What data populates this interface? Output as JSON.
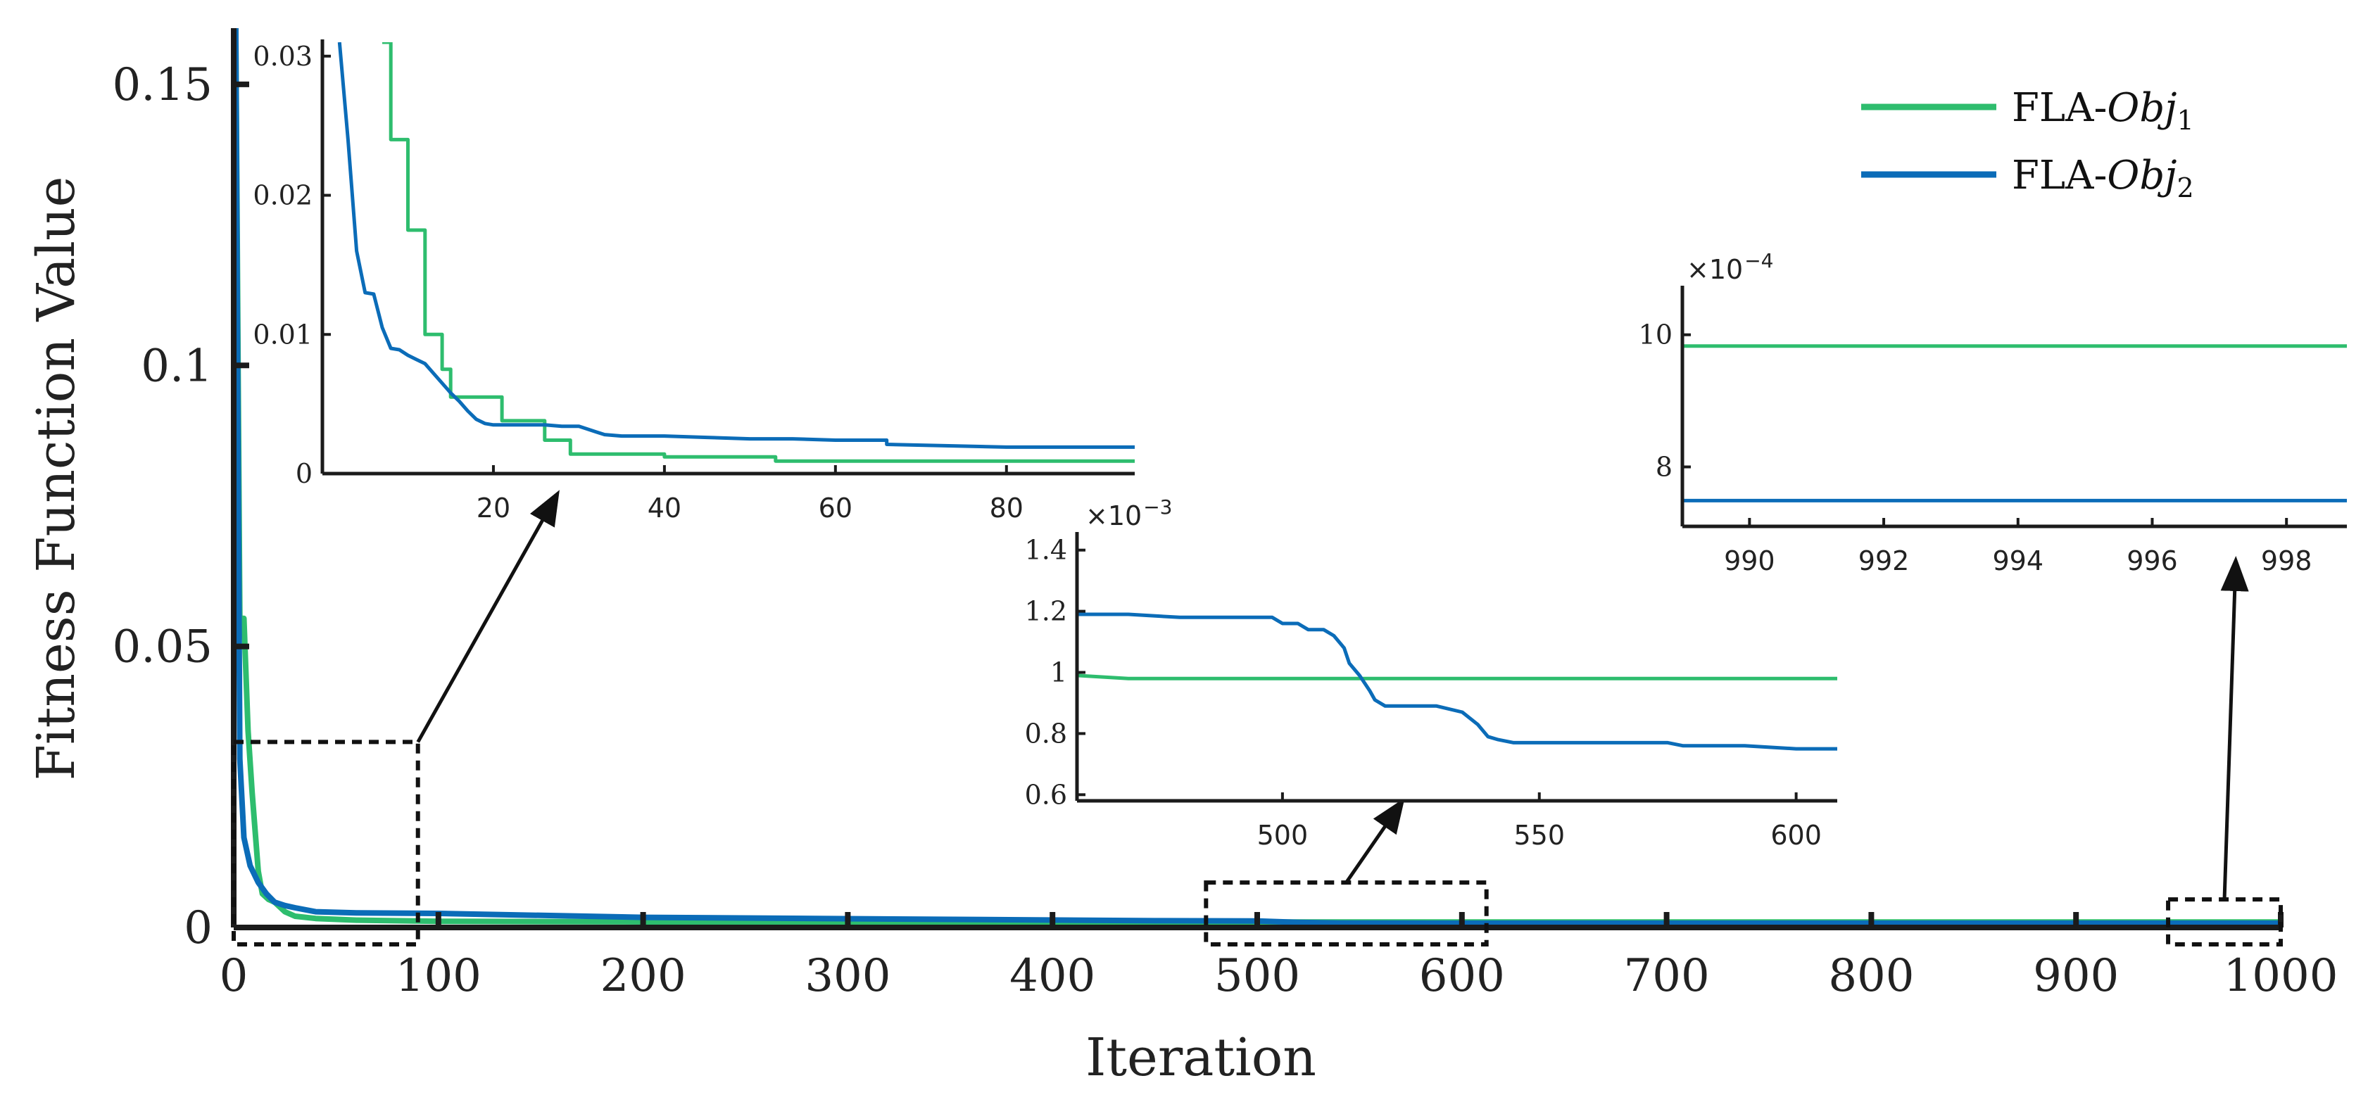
{
  "chart_data": {
    "type": "line",
    "xlabel": "Iteration",
    "ylabel": "Fitness Function Value",
    "xlim": [
      0,
      1000
    ],
    "ylim": [
      0,
      0.16
    ],
    "xticks": [
      0,
      100,
      200,
      300,
      400,
      500,
      600,
      700,
      800,
      900,
      1000
    ],
    "xtick_labels": [
      "0",
      "100",
      "200",
      "300",
      "400",
      "500",
      "600",
      "700",
      "800",
      "900",
      "1000"
    ],
    "yticks": [
      0,
      0.05,
      0.1,
      0.15
    ],
    "ytick_labels": [
      "0",
      "0.05",
      "0.1",
      "0.15"
    ],
    "grid": false,
    "legend_position": "top-right",
    "colors": {
      "obj1": "#2ebd6e",
      "obj2": "#0b6cb8"
    },
    "series": [
      {
        "key": "obj1",
        "name_prefix": "FLA-",
        "name_var": "Obj",
        "name_sub": "1",
        "x": [
          1,
          3,
          5,
          7,
          9,
          12,
          14,
          17,
          20,
          25,
          30,
          40,
          60,
          100,
          200,
          400,
          1000
        ],
        "y": [
          0.16,
          0.055,
          0.055,
          0.035,
          0.024,
          0.01,
          0.006,
          0.005,
          0.0045,
          0.0028,
          0.002,
          0.0016,
          0.0013,
          0.0011,
          0.001,
          0.00098,
          0.00098
        ]
      },
      {
        "key": "obj2",
        "name_prefix": "FLA-",
        "name_var": "Obj",
        "name_sub": "2",
        "x": [
          1,
          3,
          5,
          8,
          12,
          16,
          20,
          25,
          30,
          40,
          60,
          100,
          200,
          450,
          500,
          520,
          540,
          600,
          1000
        ],
        "y": [
          0.16,
          0.03,
          0.016,
          0.011,
          0.008,
          0.006,
          0.0045,
          0.0039,
          0.0035,
          0.0028,
          0.0026,
          0.0025,
          0.0018,
          0.0012,
          0.00115,
          0.0009,
          0.00077,
          0.00075,
          0.00075
        ]
      }
    ],
    "zoom_boxes": [
      {
        "x": [
          0,
          90
        ],
        "y": [
          -0.003,
          0.033
        ]
      },
      {
        "x": [
          475,
          612
        ],
        "y": [
          -0.003,
          0.008
        ]
      },
      {
        "x": [
          945,
          1000
        ],
        "y": [
          -0.003,
          0.005
        ]
      }
    ],
    "insets": [
      {
        "id": "inset1",
        "xlim": [
          0,
          95
        ],
        "ylim": [
          0,
          0.031
        ],
        "xticks": [
          20,
          40,
          60,
          80
        ],
        "xtick_labels": [
          "20",
          "40",
          "60",
          "80"
        ],
        "yticks": [
          0,
          0.01,
          0.02,
          0.03
        ],
        "ytick_labels": [
          "0",
          "0.01",
          "0.02",
          "0.03"
        ],
        "series": [
          {
            "key": "obj1",
            "x": [
              7,
              8,
              8,
              10,
              10,
              12,
              12,
              14,
              14,
              15,
              15,
              19,
              19,
              21,
              21,
              26,
              26,
              29,
              29,
              32,
              32,
              40,
              40,
              53,
              53,
              95
            ],
            "y": [
              0.031,
              0.031,
              0.024,
              0.024,
              0.0175,
              0.0175,
              0.01,
              0.01,
              0.0075,
              0.0075,
              0.0055,
              0.0055,
              0.0055,
              0.0055,
              0.0038,
              0.0038,
              0.0024,
              0.0024,
              0.0014,
              0.0014,
              0.0014,
              0.0014,
              0.0012,
              0.0012,
              0.0009,
              0.0009
            ]
          },
          {
            "key": "obj2",
            "x": [
              2,
              3,
              4,
              5,
              6,
              7,
              8,
              9,
              10,
              11,
              12,
              13,
              14,
              15,
              16,
              17,
              18,
              19,
              20,
              22,
              24,
              26,
              28,
              30,
              31,
              32,
              33,
              35,
              40,
              45,
              50,
              55,
              60,
              66,
              66,
              80,
              95
            ],
            "y": [
              0.031,
              0.024,
              0.016,
              0.013,
              0.0129,
              0.0105,
              0.009,
              0.0089,
              0.0085,
              0.0082,
              0.0079,
              0.0072,
              0.0065,
              0.0058,
              0.0052,
              0.0045,
              0.0039,
              0.0036,
              0.0035,
              0.0035,
              0.0035,
              0.0035,
              0.0034,
              0.0034,
              0.0032,
              0.003,
              0.0028,
              0.0027,
              0.0027,
              0.0026,
              0.0025,
              0.0025,
              0.0024,
              0.0024,
              0.0021,
              0.0019,
              0.0019
            ]
          }
        ]
      },
      {
        "id": "inset2",
        "xlim": [
          460,
          608
        ],
        "ylim": [
          0.00058,
          0.00145
        ],
        "xticks": [
          500,
          550,
          600
        ],
        "xtick_labels": [
          "500",
          "550",
          "600"
        ],
        "yticks": [
          0.0006,
          0.0008,
          0.001,
          0.0012,
          0.0014
        ],
        "ytick_labels": [
          "0.6",
          "0.8",
          "1",
          "1.2",
          "1.4"
        ],
        "exponent_base": "×10",
        "exponent_power": "−3",
        "series": [
          {
            "key": "obj1",
            "x": [
              460,
              470,
              608
            ],
            "y": [
              0.00099,
              0.00098,
              0.00098
            ]
          },
          {
            "key": "obj2",
            "x": [
              460,
              470,
              480,
              490,
              498,
              500,
              503,
              505,
              508,
              510,
              512,
              513,
              515,
              517,
              518,
              520,
              522,
              525,
              530,
              535,
              538,
              540,
              542,
              545,
              550,
              560,
              570,
              575,
              578,
              590,
              600,
              608
            ],
            "y": [
              0.00119,
              0.00119,
              0.00118,
              0.00118,
              0.00118,
              0.00116,
              0.00116,
              0.00114,
              0.00114,
              0.00112,
              0.00108,
              0.00103,
              0.00099,
              0.00094,
              0.00091,
              0.00089,
              0.00089,
              0.00089,
              0.00089,
              0.00087,
              0.00083,
              0.00079,
              0.00078,
              0.00077,
              0.00077,
              0.00077,
              0.00077,
              0.00077,
              0.00076,
              0.00076,
              0.00075,
              0.00075
            ]
          }
        ]
      },
      {
        "id": "inset3",
        "xlim": [
          989,
          998.9
        ],
        "ylim": [
          0.00071,
          0.00107
        ],
        "xticks": [
          990,
          992,
          994,
          996,
          998
        ],
        "xtick_labels": [
          "990",
          "992",
          "994",
          "996",
          "998"
        ],
        "yticks": [
          0.0008,
          0.001
        ],
        "ytick_labels": [
          "8",
          "10"
        ],
        "exponent_base": "×10",
        "exponent_power": "−4",
        "series": [
          {
            "key": "obj1",
            "x": [
              989,
              998.9
            ],
            "y": [
              0.000983,
              0.000983
            ]
          },
          {
            "key": "obj2",
            "x": [
              989,
              998.9
            ],
            "y": [
              0.000749,
              0.000749
            ]
          }
        ]
      }
    ]
  }
}
